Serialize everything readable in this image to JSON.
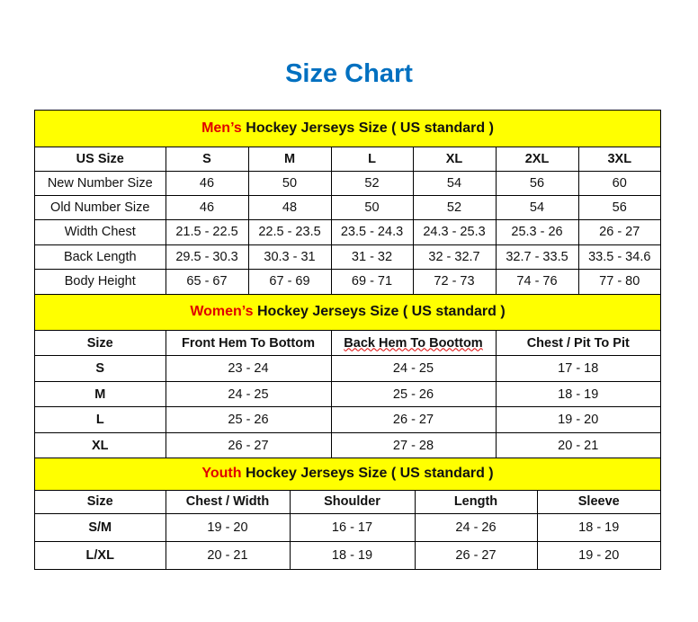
{
  "title": "Size Chart",
  "men": {
    "label_red": "Men’s",
    "label_rest": " Hockey Jerseys Size ( US standard )",
    "headers": [
      "US Size",
      "S",
      "M",
      "L",
      "XL",
      "2XL",
      "3XL"
    ],
    "rows": [
      [
        "New Number Size",
        "46",
        "50",
        "52",
        "54",
        "56",
        "60"
      ],
      [
        "Old Number Size",
        "46",
        "48",
        "50",
        "52",
        "54",
        "56"
      ],
      [
        "Width Chest",
        "21.5 - 22.5",
        "22.5 - 23.5",
        "23.5 - 24.3",
        "24.3 - 25.3",
        "25.3 - 26",
        "26 - 27"
      ],
      [
        "Back Length",
        "29.5 - 30.3",
        "30.3 - 31",
        "31 - 32",
        "32 - 32.7",
        "32.7 - 33.5",
        "33.5 - 34.6"
      ],
      [
        "Body Height",
        "65 - 67",
        "67 - 69",
        "69 - 71",
        "72 - 73",
        "74 - 76",
        "77 - 80"
      ]
    ]
  },
  "women": {
    "label_red": "Women’s",
    "label_rest": " Hockey Jerseys Size ( US standard )",
    "headers": [
      "Size",
      "Front Hem To Bottom",
      "Back Hem To Boottom",
      "Chest / Pit To Pit"
    ],
    "rows": [
      [
        "S",
        "23 - 24",
        "24 - 25",
        "17 - 18"
      ],
      [
        "M",
        "24 - 25",
        "25 - 26",
        "18 - 19"
      ],
      [
        "L",
        "25 - 26",
        "26 - 27",
        "19 - 20"
      ],
      [
        "XL",
        "26 - 27",
        "27 - 28",
        "20 - 21"
      ]
    ]
  },
  "youth": {
    "label_red": "Youth",
    "label_rest": " Hockey Jerseys Size ( US standard )",
    "headers": [
      "Size",
      "Chest / Width",
      "Shoulder",
      "Length",
      "Sleeve"
    ],
    "rows": [
      [
        "S/M",
        "19 - 20",
        "16 - 17",
        "24 - 26",
        "18 - 19"
      ],
      [
        "L/XL",
        "20 - 21",
        "18 - 19",
        "26 - 27",
        "19 - 20"
      ]
    ]
  },
  "colors": {
    "title": "#0070c0",
    "section_bg": "#ffff00",
    "accent_red": "#e00000"
  }
}
